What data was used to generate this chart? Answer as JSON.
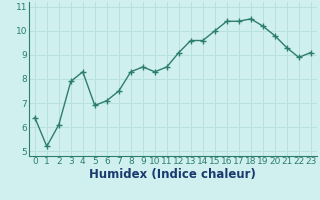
{
  "x": [
    0,
    1,
    2,
    3,
    4,
    5,
    6,
    7,
    8,
    9,
    10,
    11,
    12,
    13,
    14,
    15,
    16,
    17,
    18,
    19,
    20,
    21,
    22,
    23
  ],
  "y": [
    6.4,
    5.2,
    6.1,
    7.9,
    8.3,
    6.9,
    7.1,
    7.5,
    8.3,
    8.5,
    8.3,
    8.5,
    9.1,
    9.6,
    9.6,
    10.0,
    10.4,
    10.4,
    10.5,
    10.2,
    9.8,
    9.3,
    8.9,
    9.1
  ],
  "xlabel": "Humidex (Indice chaleur)",
  "line_color": "#2d7d6e",
  "marker": "+",
  "bg_color": "#cff0ee",
  "grid_color": "#b8e0dc",
  "xlim": [
    -0.5,
    23.5
  ],
  "ylim": [
    4.8,
    11.2
  ],
  "yticks": [
    5,
    6,
    7,
    8,
    9,
    10,
    11
  ],
  "xticks": [
    0,
    1,
    2,
    3,
    4,
    5,
    6,
    7,
    8,
    9,
    10,
    11,
    12,
    13,
    14,
    15,
    16,
    17,
    18,
    19,
    20,
    21,
    22,
    23
  ],
  "tick_fontsize": 6.5,
  "xlabel_fontsize": 8.5,
  "xlabel_color": "#1a3a6e",
  "tick_color": "#2d7d6e"
}
